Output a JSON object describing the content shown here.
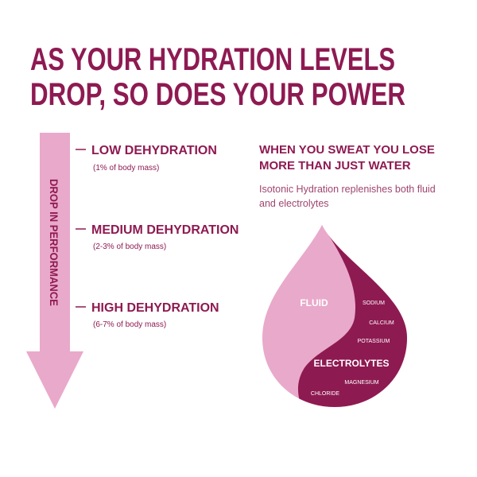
{
  "header": {
    "title_lines": [
      "AS YOUR HYDRATION LEVELS",
      "DROP, SO DOES YOUR POWER"
    ]
  },
  "arrow": {
    "label": "DROP IN PERFORMANCE"
  },
  "levels": [
    {
      "name": "LOW DEHYDRATION",
      "note": "(1% of body mass)"
    },
    {
      "name": "MEDIUM DEHYDRATION",
      "note": "(2-3% of body mass)"
    },
    {
      "name": "HIGH DEHYDRATION",
      "note": "(6-7% of body mass)"
    }
  ],
  "sweat": {
    "heading_lines": [
      "WHEN YOU SWEAT YOU LOSE",
      "MORE THAN JUST WATER"
    ],
    "description_lines": [
      "Isotonic Hydration replenishes both fluid",
      "and electrolytes"
    ]
  },
  "drop": {
    "fluid": "FLUID",
    "electrolytes": "ELECTROLYTES",
    "items": [
      "SODIUM",
      "CALCIUM",
      "POTASSIUM",
      "MAGNESIUM",
      "CHLORIDE"
    ]
  }
}
